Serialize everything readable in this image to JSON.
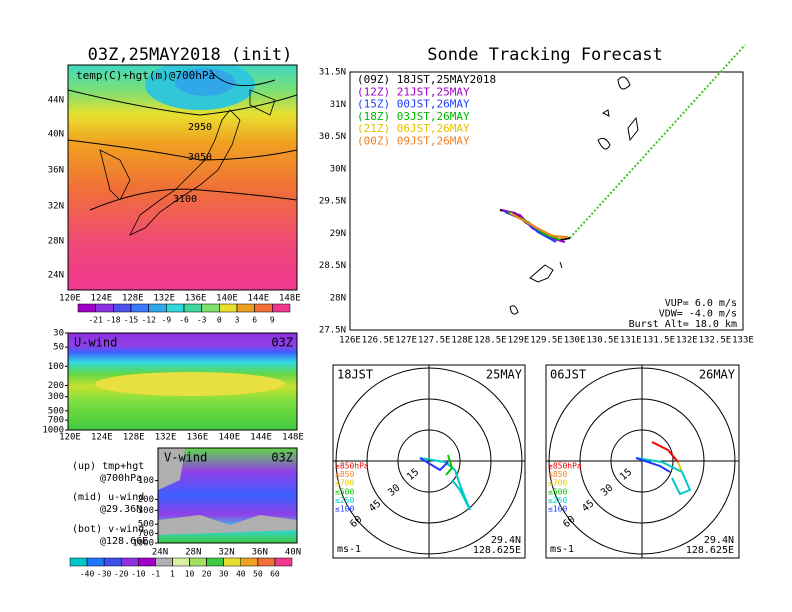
{
  "left": {
    "title": "03Z,25MAY2018 (init)",
    "map_label": "temp(C)+hgt(m)@700hPa",
    "lat_labels": [
      "44N",
      "40N",
      "36N",
      "32N",
      "28N",
      "24N"
    ],
    "lon_labels": [
      "120E",
      "124E",
      "128E",
      "132E",
      "136E",
      "140E",
      "144E",
      "148E"
    ],
    "contour_labels": [
      "2950",
      "3050",
      "3100"
    ],
    "colorbar_ticks": [
      -21,
      -18,
      -15,
      -12,
      -9,
      -6,
      -3,
      0,
      3,
      6,
      9
    ]
  },
  "uwind": {
    "label": "U-wind",
    "time": "03Z",
    "ylim": [
      30,
      1000
    ],
    "yticks": [
      30,
      50,
      100,
      200,
      300,
      500,
      700,
      1000
    ],
    "lon_labels": [
      "120E",
      "124E",
      "128E",
      "132E",
      "136E",
      "140E",
      "144E",
      "148E"
    ]
  },
  "vwind": {
    "label": "V-wind",
    "time": "03Z",
    "ylim": [
      30,
      1000
    ],
    "yticks": [
      100,
      200,
      300,
      500,
      700,
      1000
    ],
    "lat_labels": [
      "24N",
      "28N",
      "32N",
      "36N",
      "40N"
    ],
    "colorbar_ticks": [
      -40,
      -30,
      -20,
      -10,
      -1,
      1,
      10,
      20,
      30,
      40,
      50,
      60
    ]
  },
  "notes": [
    "(up) tmp+hgt",
    "@700hPa",
    "(mid) u-wind",
    "@29.36N",
    "(bot) v-wind",
    "@128.66E"
  ],
  "track": {
    "title": "Sonde Tracking Forecast",
    "legend": [
      {
        "text": "(09Z) 18JST,25MAY2018",
        "color": "#000000"
      },
      {
        "text": "(12Z) 21JST,25MAY",
        "color": "#a000c8"
      },
      {
        "text": "(15Z) 00JST,26MAY",
        "color": "#1e3cff"
      },
      {
        "text": "(18Z) 03JST,26MAY",
        "color": "#00b400"
      },
      {
        "text": "(21Z) 06JST,26MAY",
        "color": "#e6c000"
      },
      {
        "text": "(00Z) 09JST,26MAY",
        "color": "#f08228"
      }
    ],
    "lat_labels": [
      "31.5N",
      "31N",
      "30.5N",
      "30N",
      "29.5N",
      "29N",
      "28.5N",
      "28N",
      "27.5N"
    ],
    "lon_labels": [
      "126E",
      "126.5E",
      "127E",
      "127.5E",
      "128E",
      "128.5E",
      "129E",
      "129.5E",
      "130E",
      "130.5E",
      "131E",
      "131.5E",
      "132E",
      "132.5E",
      "133E"
    ],
    "params": [
      "VUP= 6.0 m/s",
      "VDW= -4.0 m/s",
      "Burst Alt= 18.0 km"
    ]
  },
  "hodographs": [
    {
      "time": "18JST",
      "date": "25MAY",
      "ring_labels": [
        "15",
        "30",
        "45",
        "60"
      ],
      "unit": "ms-1",
      "lat": "29.4N",
      "lon": "128.625E"
    },
    {
      "time": "06JST",
      "date": "26MAY",
      "ring_labels": [
        "15",
        "30",
        "45",
        "60"
      ],
      "unit": "ms-1",
      "lat": "29.4N",
      "lon": "128.625E"
    }
  ],
  "levels": [
    {
      "text": "≥850hPa",
      "color": "#f00000"
    },
    {
      "text": "≤850",
      "color": "#f08228"
    },
    {
      "text": "≤700",
      "color": "#e6c800"
    },
    {
      "text": "≤500",
      "color": "#00c800"
    },
    {
      "text": "≤250",
      "color": "#00c8c8"
    },
    {
      "text": "≤100",
      "color": "#1e3cff"
    }
  ]
}
